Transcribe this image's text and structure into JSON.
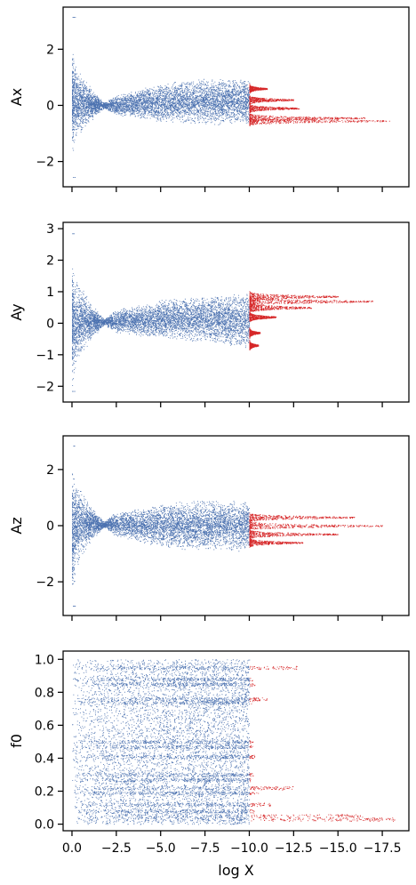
{
  "chart_data": [
    {
      "type": "scatter",
      "ylabel": "Ax",
      "xlim": [
        0.5,
        -19.0
      ],
      "ylim": [
        -2.9,
        3.5
      ],
      "yticks": [
        -2,
        0,
        2
      ],
      "ytick_labels": [
        "−2",
        "0",
        "2"
      ],
      "threshold_x": -10.0,
      "colors": {
        "main": "#4c72b0",
        "tail": "#d62728"
      },
      "envelope": [
        {
          "x": 0.0,
          "lo": -2.0,
          "hi": 2.3
        },
        {
          "x": -0.3,
          "lo": -1.2,
          "hi": 1.4
        },
        {
          "x": -1.0,
          "lo": -0.6,
          "hi": 0.7
        },
        {
          "x": -1.8,
          "lo": -0.1,
          "hi": 0.1
        },
        {
          "x": -2.5,
          "lo": -0.35,
          "hi": 0.4
        },
        {
          "x": -5.0,
          "lo": -0.6,
          "hi": 0.8
        },
        {
          "x": -7.5,
          "lo": -0.7,
          "hi": 1.0
        },
        {
          "x": -10.0,
          "lo": -0.7,
          "hi": 1.0
        }
      ],
      "tail_bands": [
        {
          "y": 0.6,
          "x_end": -11.0
        },
        {
          "y": 0.2,
          "x_end": -12.5
        },
        {
          "y": -0.1,
          "x_end": -12.8
        },
        {
          "y": -0.45,
          "x_end": -16.5
        },
        {
          "y": -0.55,
          "x_end": -18.0
        }
      ]
    },
    {
      "type": "scatter",
      "ylabel": "Ay",
      "xlim": [
        0.5,
        -19.0
      ],
      "ylim": [
        -2.5,
        3.2
      ],
      "yticks": [
        -2,
        -1,
        0,
        1,
        2,
        3
      ],
      "ytick_labels": [
        "−2",
        "−1",
        "0",
        "1",
        "2",
        "3"
      ],
      "threshold_x": -10.0,
      "colors": {
        "main": "#4c72b0",
        "tail": "#d62728"
      },
      "envelope": [
        {
          "x": 0.0,
          "lo": -2.2,
          "hi": 2.1
        },
        {
          "x": -0.3,
          "lo": -1.3,
          "hi": 1.4
        },
        {
          "x": -1.0,
          "lo": -0.6,
          "hi": 0.7
        },
        {
          "x": -1.8,
          "lo": -0.05,
          "hi": 0.15
        },
        {
          "x": -2.5,
          "lo": -0.3,
          "hi": 0.45
        },
        {
          "x": -5.0,
          "lo": -0.5,
          "hi": 0.75
        },
        {
          "x": -7.5,
          "lo": -0.6,
          "hi": 0.9
        },
        {
          "x": -10.0,
          "lo": -0.8,
          "hi": 1.0
        }
      ],
      "tail_bands": [
        {
          "y": 0.85,
          "x_end": -15.0
        },
        {
          "y": 0.7,
          "x_end": -17.0
        },
        {
          "y": 0.5,
          "x_end": -13.5
        },
        {
          "y": 0.2,
          "x_end": -11.5
        },
        {
          "y": -0.3,
          "x_end": -10.6
        },
        {
          "y": -0.7,
          "x_end": -10.5
        }
      ]
    },
    {
      "type": "scatter",
      "ylabel": "Az",
      "xlim": [
        0.5,
        -19.0
      ],
      "ylim": [
        -3.2,
        3.2
      ],
      "yticks": [
        -2,
        0,
        2
      ],
      "ytick_labels": [
        "−2",
        "0",
        "2"
      ],
      "threshold_x": -10.0,
      "colors": {
        "main": "#4c72b0",
        "tail": "#d62728"
      },
      "envelope": [
        {
          "x": 0.0,
          "lo": -2.9,
          "hi": 2.3
        },
        {
          "x": -0.3,
          "lo": -1.5,
          "hi": 1.6
        },
        {
          "x": -1.0,
          "lo": -0.6,
          "hi": 0.8
        },
        {
          "x": -1.8,
          "lo": -0.05,
          "hi": 0.15
        },
        {
          "x": -2.5,
          "lo": -0.4,
          "hi": 0.5
        },
        {
          "x": -5.0,
          "lo": -0.8,
          "hi": 0.8
        },
        {
          "x": -7.5,
          "lo": -0.9,
          "hi": 0.95
        },
        {
          "x": -10.0,
          "lo": -0.9,
          "hi": 0.9
        }
      ],
      "tail_bands": [
        {
          "y": 0.3,
          "x_end": -16.0
        },
        {
          "y": 0.0,
          "x_end": -17.5
        },
        {
          "y": -0.3,
          "x_end": -15.0
        },
        {
          "y": -0.6,
          "x_end": -13.0
        }
      ]
    },
    {
      "type": "scatter",
      "ylabel": "f0",
      "xlabel": "log X",
      "xlim": [
        0.5,
        -19.0
      ],
      "ylim": [
        -0.04,
        1.05
      ],
      "yticks": [
        0.0,
        0.2,
        0.4,
        0.6,
        0.8,
        1.0
      ],
      "ytick_labels": [
        "0.0",
        "0.2",
        "0.4",
        "0.6",
        "0.8",
        "1.0"
      ],
      "xticks": [
        0.0,
        -2.5,
        -5.0,
        -7.5,
        -10.0,
        -12.5,
        -15.0,
        -17.5
      ],
      "xtick_labels": [
        "0.0",
        "−2.5",
        "−5.0",
        "−7.5",
        "−10.0",
        "−12.5",
        "−15.0",
        "−17.5"
      ],
      "threshold_x": -10.0,
      "colors": {
        "main": "#4c72b0",
        "tail": "#d62728"
      },
      "uniform_y_range": [
        0.0,
        1.0
      ],
      "bands": [
        {
          "y": 0.95,
          "x_end": -12.7
        },
        {
          "y": 0.88,
          "x_end": -10.2
        },
        {
          "y": 0.85,
          "x_end": -10.3
        },
        {
          "y": 0.76,
          "x_end": -11.0
        },
        {
          "y": 0.74,
          "x_end": -10.2
        },
        {
          "y": 0.5,
          "x_end": -10.3
        },
        {
          "y": 0.47,
          "x_end": -10.2
        },
        {
          "y": 0.41,
          "x_end": -10.3
        },
        {
          "y": 0.3,
          "x_end": -10.2
        },
        {
          "y": 0.27,
          "x_end": -10.1
        },
        {
          "y": 0.22,
          "x_end": -12.5
        },
        {
          "y": 0.19,
          "x_end": -10.5
        },
        {
          "y": 0.12,
          "x_end": -11.2
        },
        {
          "y": 0.08,
          "x_end": -10.3
        },
        {
          "y": 0.05,
          "x_end": -16.5
        },
        {
          "y": 0.03,
          "x_end": -18.2
        }
      ]
    }
  ]
}
